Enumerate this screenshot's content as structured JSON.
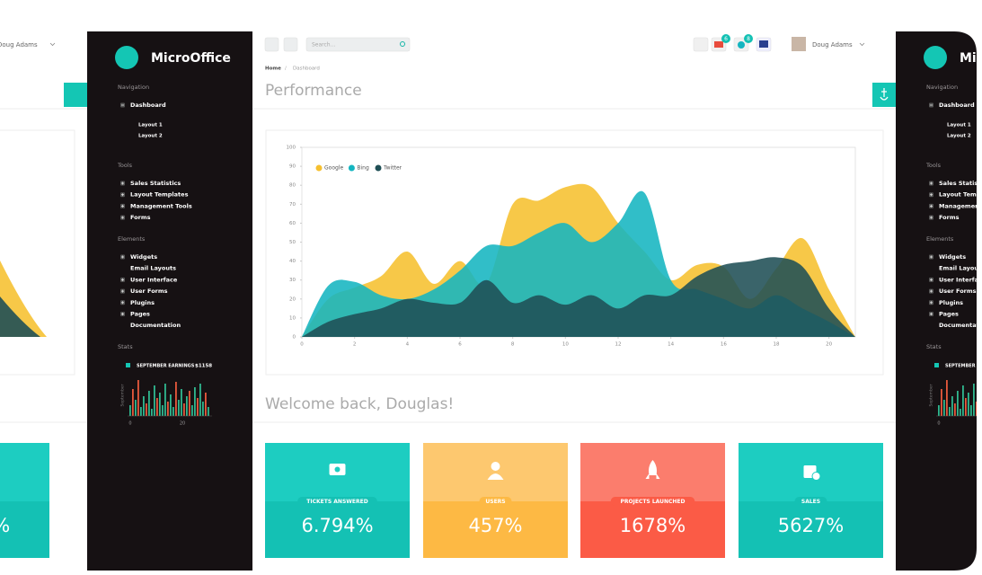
{
  "sidebar": {
    "brand": "MicroOffice",
    "sections": [
      {
        "title": "Navigation",
        "items": [
          {
            "label": "Dashboard",
            "expandable": true,
            "expanded": true,
            "children": [
              "Layout 1",
              "Layout 2"
            ]
          }
        ]
      },
      {
        "title": "Tools",
        "items": [
          {
            "label": "Sales Statistics",
            "expandable": true
          },
          {
            "label": "Layout Templates",
            "expandable": true
          },
          {
            "label": "Management Tools",
            "expandable": true
          },
          {
            "label": "Forms",
            "expandable": true
          }
        ]
      },
      {
        "title": "Elements",
        "items": [
          {
            "label": "Widgets",
            "expandable": true
          },
          {
            "label": "Email Layouts",
            "expandable": false
          },
          {
            "label": "User Interface",
            "expandable": true
          },
          {
            "label": "User Forms",
            "expandable": true
          },
          {
            "label": "Plugins",
            "expandable": true
          },
          {
            "label": "Pages",
            "expandable": true
          },
          {
            "label": "Documentation",
            "expandable": false
          }
        ]
      },
      {
        "title": "Stats",
        "earnings_label": "SEPTEMBER EARNINGS",
        "earnings_value": "$1158",
        "axis_label": "September",
        "xticks": [
          "0",
          "20"
        ],
        "bars": [
          {
            "value": 12,
            "color": "#2fb88f"
          },
          {
            "value": 30,
            "color": "#e8593c"
          },
          {
            "value": 18,
            "color": "#2fb88f"
          },
          {
            "value": 40,
            "color": "#e8593c"
          },
          {
            "value": 10,
            "color": "#2fb88f"
          },
          {
            "value": 22,
            "color": "#2fb88f"
          },
          {
            "value": 14,
            "color": "#e8593c"
          },
          {
            "value": 28,
            "color": "#2fb88f"
          },
          {
            "value": 8,
            "color": "#2fb88f"
          },
          {
            "value": 34,
            "color": "#2fb88f"
          },
          {
            "value": 20,
            "color": "#e8593c"
          },
          {
            "value": 26,
            "color": "#2fb88f"
          },
          {
            "value": 12,
            "color": "#2fb88f"
          },
          {
            "value": 36,
            "color": "#2fb88f"
          },
          {
            "value": 16,
            "color": "#e8593c"
          },
          {
            "value": 24,
            "color": "#2fb88f"
          },
          {
            "value": 10,
            "color": "#2fb88f"
          },
          {
            "value": 38,
            "color": "#e8593c"
          },
          {
            "value": 18,
            "color": "#2fb88f"
          },
          {
            "value": 30,
            "color": "#2fb88f"
          },
          {
            "value": 14,
            "color": "#e8593c"
          },
          {
            "value": 22,
            "color": "#2fb88f"
          },
          {
            "value": 28,
            "color": "#e8593c"
          },
          {
            "value": 12,
            "color": "#2fb88f"
          },
          {
            "value": 32,
            "color": "#2fb88f"
          },
          {
            "value": 20,
            "color": "#e8593c"
          },
          {
            "value": 36,
            "color": "#2fb88f"
          },
          {
            "value": 16,
            "color": "#2fb88f"
          },
          {
            "value": 26,
            "color": "#e8593c"
          },
          {
            "value": 10,
            "color": "#2fb88f"
          }
        ]
      }
    ]
  },
  "topbar": {
    "search_placeholder": "Search...",
    "badges": [
      "6",
      "8"
    ],
    "user": "Doug Adams"
  },
  "breadcrumb": [
    "Home",
    "Dashboard"
  ],
  "page_title": "Performance",
  "welcome": "Welcome back, Douglas!",
  "chart_data": {
    "type": "area",
    "x": [
      0,
      1,
      2,
      3,
      4,
      5,
      6,
      7,
      8,
      9,
      10,
      11,
      12,
      13,
      14,
      15,
      16,
      17,
      18,
      19,
      20,
      21
    ],
    "series": [
      {
        "name": "Google",
        "color": "#f6c02f",
        "values": [
          0,
          20,
          26,
          32,
          45,
          28,
          40,
          28,
          70,
          72,
          79,
          79,
          60,
          45,
          30,
          38,
          37,
          20,
          36,
          52,
          25,
          0
        ]
      },
      {
        "name": "Bing",
        "color": "#14b5c0",
        "values": [
          0,
          27,
          29,
          22,
          20,
          25,
          35,
          48,
          48,
          55,
          60,
          50,
          60,
          76,
          30,
          25,
          20,
          15,
          22,
          15,
          8,
          0
        ]
      },
      {
        "name": "Twitter",
        "color": "#1f4f55",
        "values": [
          0,
          8,
          12,
          15,
          20,
          18,
          18,
          30,
          18,
          22,
          17,
          22,
          15,
          22,
          22,
          32,
          38,
          40,
          42,
          37,
          15,
          0
        ]
      }
    ],
    "xlim": [
      0,
      21
    ],
    "ylim": [
      0,
      100
    ],
    "xticks": [
      0,
      2,
      4,
      6,
      8,
      10,
      12,
      14,
      16,
      18,
      20
    ],
    "yticks": [
      0,
      10,
      20,
      30,
      40,
      50,
      60,
      70,
      80,
      90,
      100
    ],
    "legend": "top-left"
  },
  "cards": [
    {
      "label": "TICKETS ANSWERED",
      "value": "6.794%",
      "color": "#1dcdc1",
      "color_dark": "#14c1b4"
    },
    {
      "label": "USERS",
      "value": "457%",
      "color": "#fdc86f",
      "color_dark": "#fdb944"
    },
    {
      "label": "PROJECTS LAUNCHED",
      "value": "1678%",
      "color": "#fb7d6d",
      "color_dark": "#fb5b46"
    },
    {
      "label": "SALES",
      "value": "5627%",
      "color": "#1dcdc1",
      "color_dark": "#14c1b4"
    }
  ]
}
